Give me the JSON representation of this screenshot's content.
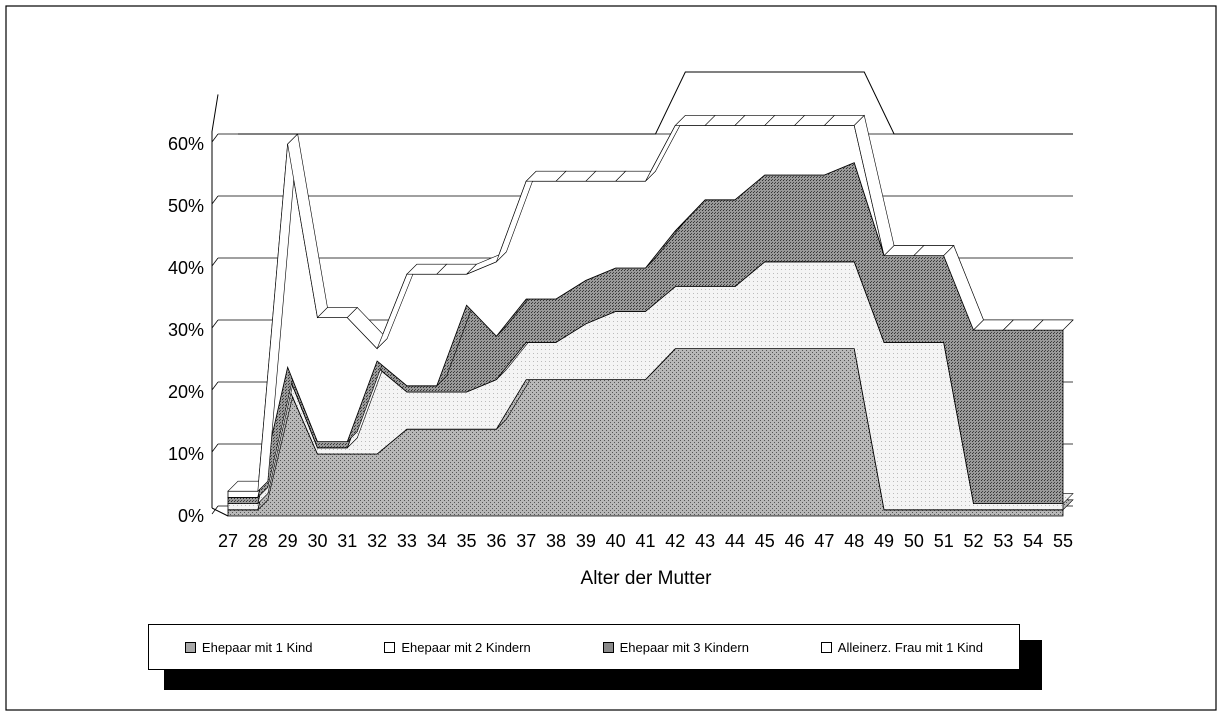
{
  "chart_data": {
    "type": "area",
    "subtype": "3d-stacked-area",
    "xlabel": "Alter der Mutter",
    "x": [
      27,
      28,
      29,
      30,
      31,
      32,
      33,
      34,
      35,
      36,
      37,
      38,
      39,
      40,
      41,
      42,
      43,
      44,
      45,
      46,
      47,
      48,
      49,
      50,
      51,
      52,
      53,
      54,
      55
    ],
    "y_ticks": [
      "0%",
      "10%",
      "20%",
      "30%",
      "40%",
      "50%",
      "60%"
    ],
    "ylim": [
      0,
      0.6
    ],
    "legend_position": "bottom",
    "series": [
      {
        "name": "Ehepaar mit 1 Kind",
        "color": "#a8a8a8",
        "values": [
          0.01,
          0.01,
          0.21,
          0.1,
          0.1,
          0.1,
          0.14,
          0.14,
          0.14,
          0.14,
          0.22,
          0.22,
          0.22,
          0.22,
          0.22,
          0.27,
          0.27,
          0.27,
          0.27,
          0.27,
          0.27,
          0.27,
          0.01,
          0.01,
          0.01,
          0.01,
          0.01,
          0.01,
          0.01
        ]
      },
      {
        "name": "Ehepaar mit 2 Kindern",
        "color": "#ececec",
        "values": [
          0.01,
          0.01,
          0.02,
          0.01,
          0.01,
          0.14,
          0.06,
          0.06,
          0.06,
          0.08,
          0.06,
          0.06,
          0.09,
          0.11,
          0.11,
          0.1,
          0.1,
          0.1,
          0.14,
          0.14,
          0.14,
          0.14,
          0.27,
          0.27,
          0.27,
          0.01,
          0.01,
          0.01,
          0.01
        ]
      },
      {
        "name": "Ehepaar mit 3 Kindern",
        "color": "#8a8a8a",
        "values": [
          0.01,
          0.01,
          0.01,
          0.01,
          0.01,
          0.01,
          0.01,
          0.01,
          0.14,
          0.07,
          0.07,
          0.07,
          0.07,
          0.07,
          0.07,
          0.09,
          0.14,
          0.14,
          0.14,
          0.14,
          0.14,
          0.16,
          0.14,
          0.14,
          0.14,
          0.28,
          0.28,
          0.28,
          0.28
        ]
      },
      {
        "name": "Alleinerz. Frau mit 1 Kind",
        "color": "#ffffff",
        "values": [
          0.01,
          0.01,
          0.36,
          0.2,
          0.2,
          0.02,
          0.18,
          0.18,
          0.05,
          0.12,
          0.19,
          0.19,
          0.16,
          0.14,
          0.14,
          0.17,
          0.12,
          0.12,
          0.08,
          0.08,
          0.08,
          0.06,
          0.0,
          0.0,
          0.0,
          0.0,
          0.0,
          0.0,
          0.0
        ]
      }
    ],
    "back_wall_outline": [
      0.6,
      0.6,
      0.6,
      0.6,
      0.6,
      0.6,
      0.6,
      0.6,
      0.6,
      0.6,
      0.6,
      0.6,
      0.6,
      0.6,
      0.6,
      0.7,
      0.7,
      0.7,
      0.7,
      0.7,
      0.7,
      0.7,
      0.6,
      0.6,
      0.6,
      0.6,
      0.6,
      0.6,
      0.6
    ]
  },
  "legend": {
    "items": [
      {
        "label": "Ehepaar mit 1 Kind"
      },
      {
        "label": "Ehepaar mit 2 Kindern"
      },
      {
        "label": "Ehepaar mit 3 Kindern"
      },
      {
        "label": "Alleinerz. Frau mit 1 Kind"
      }
    ]
  }
}
